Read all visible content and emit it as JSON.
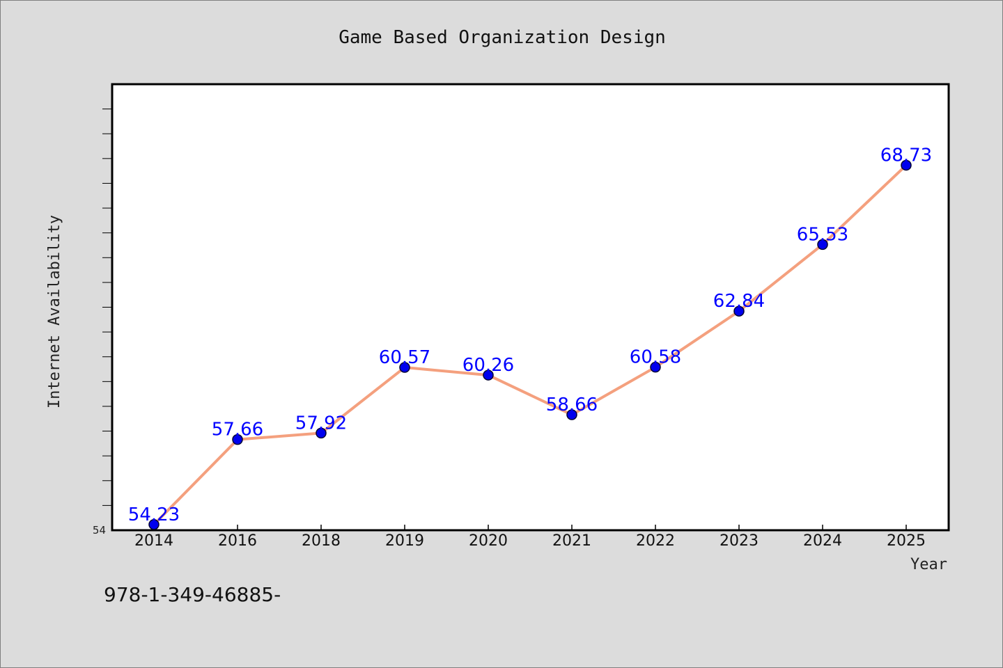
{
  "chart_data": {
    "type": "line",
    "title": "Game Based Organization Design",
    "xlabel": "Year",
    "ylabel": "Internet Availability",
    "categories": [
      "2014",
      "2016",
      "2018",
      "2019",
      "2020",
      "2021",
      "2022",
      "2023",
      "2024",
      "2025"
    ],
    "series": [
      {
        "values": [
          54.23,
          57.66,
          57.92,
          60.57,
          60.26,
          58.66,
          60.58,
          62.84,
          65.53,
          68.73
        ],
        "labels": [
          "54.23",
          "57.66",
          "57.92",
          "60.57",
          "60.26",
          "58.66",
          "60.58",
          "62.84",
          "65.53",
          "68.73"
        ]
      }
    ],
    "ylim": [
      54,
      72
    ],
    "yticks_labeled": [
      "54"
    ],
    "grid": false,
    "legend": "none",
    "colors": {
      "line": "#f4a07e",
      "marker": "#0000ee",
      "label": "#0000ff",
      "background": "#dcdcdc",
      "plot_background": "#ffffff"
    }
  },
  "footer": {
    "note": "978-1-349-46885-"
  }
}
